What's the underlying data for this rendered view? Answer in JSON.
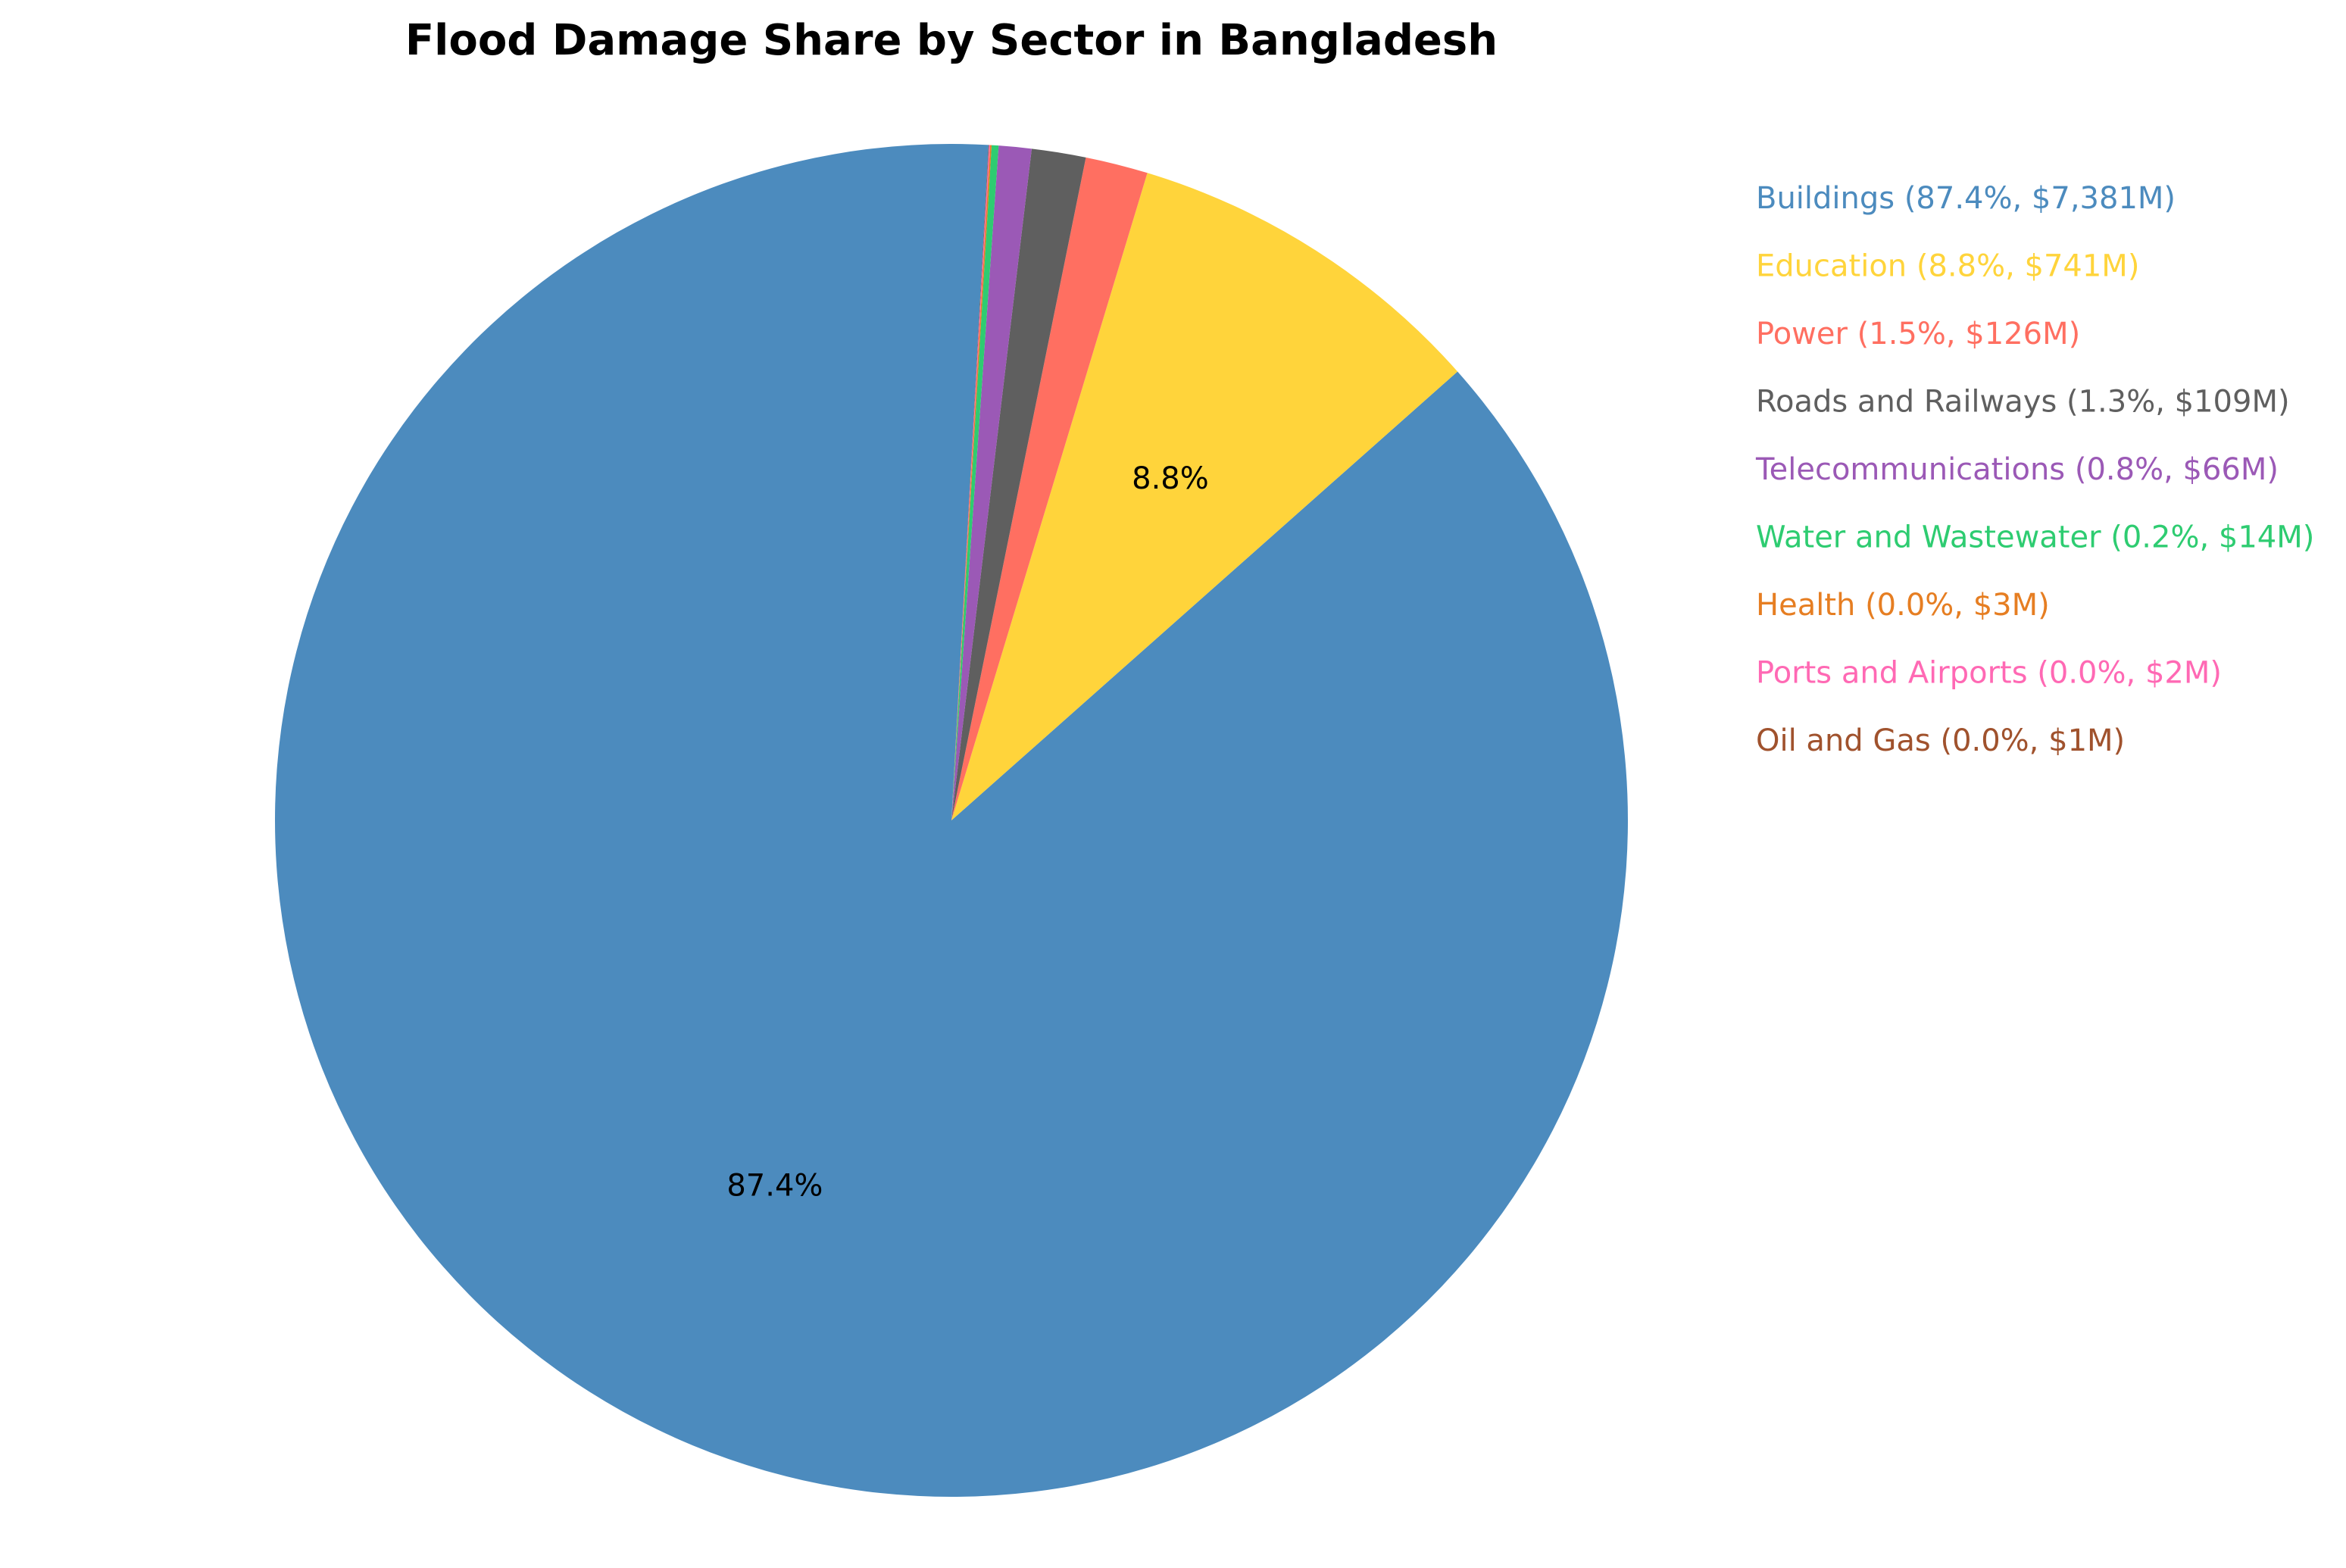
{
  "chart_data": {
    "type": "pie",
    "title": "Flood Damage Share by Sector in Bangladesh",
    "start_angle_deg": 86.85,
    "direction": "counterclockwise",
    "legend_position": "right",
    "slices": [
      {
        "name": "Buildings",
        "value": 7381,
        "percent": 87.4,
        "color": "#4C8BBE",
        "legend": "Buildings (87.4%, $7,381M)",
        "label": "87.4%"
      },
      {
        "name": "Education",
        "value": 741,
        "percent": 8.8,
        "color": "#FFD43B",
        "legend": "Education (8.8%, $741M)",
        "label": "8.8%"
      },
      {
        "name": "Power",
        "value": 126,
        "percent": 1.5,
        "color": "#FF6F61",
        "legend": "Power (1.5%, $126M)",
        "label": ""
      },
      {
        "name": "Roads and Railways",
        "value": 109,
        "percent": 1.3,
        "color": "#5F5F5F",
        "legend": "Roads and Railways (1.3%, $109M)",
        "label": ""
      },
      {
        "name": "Telecommunications",
        "value": 66,
        "percent": 0.8,
        "color": "#9B59B6",
        "legend": "Telecommunications (0.8%, $66M)",
        "label": ""
      },
      {
        "name": "Water and Wastewater",
        "value": 14,
        "percent": 0.2,
        "color": "#2ECC71",
        "legend": "Water and Wastewater (0.2%, $14M)",
        "label": ""
      },
      {
        "name": "Health",
        "value": 3,
        "percent": 0.0,
        "color": "#E67E22",
        "legend": "Health (0.0%, $3M)",
        "label": ""
      },
      {
        "name": "Ports and Airports",
        "value": 2,
        "percent": 0.0,
        "color": "#FF69B4",
        "legend": "Ports and Airports (0.0%, $2M)",
        "label": ""
      },
      {
        "name": "Oil and Gas",
        "value": 1,
        "percent": 0.0,
        "color": "#A0522D",
        "legend": "Oil and Gas (0.0%, $1M)",
        "label": ""
      }
    ]
  }
}
